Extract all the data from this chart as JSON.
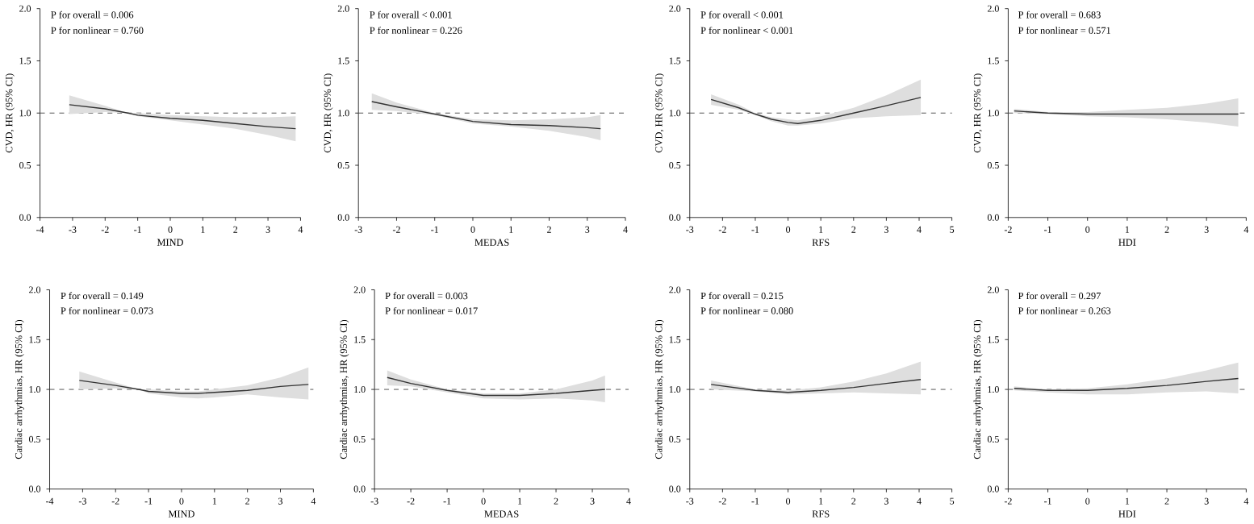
{
  "chart_data": [
    {
      "type": "line",
      "xlabel": "MIND",
      "ylabel": "CVD, HR (95% CI)",
      "annotations": [
        "P for overall = 0.006",
        "P for nonlinear = 0.760"
      ],
      "xlim": [
        -4,
        4
      ],
      "xticks": [
        -4,
        -3,
        -2,
        -1,
        0,
        1,
        2,
        3,
        4
      ],
      "ylim": [
        0,
        2
      ],
      "yticks": [
        {
          "value": 0,
          "label": "0.0"
        },
        {
          "value": 0.5,
          "label": "0.5"
        },
        {
          "value": 1,
          "label": "1.0"
        },
        {
          "value": 1.5,
          "label": "1.5"
        },
        {
          "value": 2,
          "label": "2.0"
        }
      ],
      "series": [
        {
          "color": "#333333",
          "x": [
            -3.1,
            -2,
            -1.3,
            -1,
            0,
            1,
            2,
            3,
            3.85
          ],
          "values": [
            1.08,
            1.04,
            1.0,
            0.98,
            0.95,
            0.93,
            0.9,
            0.87,
            0.85
          ],
          "lower": [
            0.99,
            1.01,
            1.0,
            0.97,
            0.93,
            0.89,
            0.85,
            0.79,
            0.73
          ],
          "upper": [
            1.17,
            1.07,
            1.0,
            1.0,
            0.98,
            0.97,
            0.96,
            0.96,
            0.97
          ]
        }
      ],
      "ref_lines": [
        {
          "axis": "y",
          "value": 1,
          "line_style": "dashed",
          "color": "#555555"
        }
      ]
    },
    {
      "type": "line",
      "xlabel": "MEDAS",
      "ylabel": "CVD, HR (95% CI)",
      "annotations": [
        "P for overall < 0.001",
        "P for nonlinear = 0.226"
      ],
      "xlim": [
        -3,
        4
      ],
      "xticks": [
        -3,
        -2,
        -1,
        0,
        1,
        2,
        3,
        4
      ],
      "ylim": [
        0,
        2
      ],
      "yticks": [
        {
          "value": 0,
          "label": "0.0"
        },
        {
          "value": 0.5,
          "label": "0.5"
        },
        {
          "value": 1,
          "label": "1.0"
        },
        {
          "value": 1.5,
          "label": "1.5"
        },
        {
          "value": 2,
          "label": "2.0"
        }
      ],
      "series": [
        {
          "color": "#333333",
          "x": [
            -2.65,
            -2,
            -1,
            0,
            1,
            2,
            3,
            3.35
          ],
          "values": [
            1.11,
            1.06,
            0.99,
            0.92,
            0.89,
            0.88,
            0.86,
            0.85
          ],
          "lower": [
            1.03,
            1.02,
            0.98,
            0.9,
            0.87,
            0.83,
            0.77,
            0.74
          ],
          "upper": [
            1.19,
            1.1,
            1.0,
            0.94,
            0.93,
            0.94,
            0.96,
            0.98
          ]
        }
      ],
      "ref_lines": [
        {
          "axis": "y",
          "value": 1,
          "line_style": "dashed",
          "color": "#555555"
        }
      ]
    },
    {
      "type": "line",
      "xlabel": "RFS",
      "ylabel": "CVD, HR (95% CI)",
      "annotations": [
        "P for overall < 0.001",
        "P for nonlinear < 0.001"
      ],
      "xlim": [
        -3,
        5
      ],
      "xticks": [
        -3,
        -2,
        -1,
        0,
        1,
        2,
        3,
        4,
        5
      ],
      "ylim": [
        0,
        2
      ],
      "yticks": [
        {
          "value": 0,
          "label": "0.0"
        },
        {
          "value": 0.5,
          "label": "0.5"
        },
        {
          "value": 1,
          "label": "1.0"
        },
        {
          "value": 1.5,
          "label": "1.5"
        },
        {
          "value": 2,
          "label": "2.0"
        }
      ],
      "series": [
        {
          "color": "#333333",
          "x": [
            -2.35,
            -1.5,
            -1,
            -0.5,
            0,
            0.3,
            1,
            2,
            3,
            4.05
          ],
          "values": [
            1.13,
            1.05,
            0.99,
            0.94,
            0.91,
            0.9,
            0.93,
            1.0,
            1.07,
            1.15
          ],
          "lower": [
            1.08,
            1.03,
            0.98,
            0.92,
            0.88,
            0.88,
            0.9,
            0.95,
            0.97,
            0.98
          ],
          "upper": [
            1.18,
            1.08,
            1.0,
            0.96,
            0.94,
            0.93,
            0.97,
            1.05,
            1.17,
            1.32
          ]
        }
      ],
      "ref_lines": [
        {
          "axis": "y",
          "value": 1,
          "line_style": "dashed",
          "color": "#555555"
        }
      ]
    },
    {
      "type": "line",
      "xlabel": "HDI",
      "ylabel": "CVD, HR (95% CI)",
      "annotations": [
        "P for overall = 0.683",
        "P for nonlinear = 0.571"
      ],
      "xlim": [
        -2,
        4
      ],
      "xticks": [
        -2,
        -1,
        0,
        1,
        2,
        3,
        4
      ],
      "ylim": [
        0,
        2
      ],
      "yticks": [
        {
          "value": 0,
          "label": "0.0"
        },
        {
          "value": 0.5,
          "label": "0.5"
        },
        {
          "value": 1,
          "label": "1.0"
        },
        {
          "value": 1.5,
          "label": "1.5"
        },
        {
          "value": 2,
          "label": "2.0"
        }
      ],
      "series": [
        {
          "color": "#333333",
          "x": [
            -1.85,
            -1,
            0,
            1,
            2,
            3,
            3.8
          ],
          "values": [
            1.02,
            1.0,
            0.99,
            0.99,
            0.99,
            0.99,
            0.99
          ],
          "lower": [
            1.0,
            0.99,
            0.97,
            0.96,
            0.94,
            0.91,
            0.87
          ],
          "upper": [
            1.04,
            1.01,
            1.01,
            1.03,
            1.05,
            1.09,
            1.14
          ]
        }
      ],
      "ref_lines": [
        {
          "axis": "y",
          "value": 1,
          "line_style": "dashed",
          "color": "#555555"
        }
      ]
    },
    {
      "type": "line",
      "xlabel": "MIND",
      "ylabel": "Cardiac arrhythmias, HR (95% CI)",
      "annotations": [
        "P for overall = 0.149",
        "P for nonlinear = 0.073"
      ],
      "xlim": [
        -4,
        4
      ],
      "xticks": [
        -4,
        -3,
        -2,
        -1,
        0,
        1,
        2,
        3,
        4
      ],
      "ylim": [
        0,
        2
      ],
      "yticks": [
        {
          "value": 0,
          "label": "0.0"
        },
        {
          "value": 0.5,
          "label": "0.5"
        },
        {
          "value": 1,
          "label": "1.0"
        },
        {
          "value": 1.5,
          "label": "1.5"
        },
        {
          "value": 2,
          "label": "2.0"
        }
      ],
      "series": [
        {
          "color": "#333333",
          "x": [
            -3.1,
            -2,
            -1.3,
            -1,
            0,
            0.5,
            1,
            2,
            3,
            3.85
          ],
          "values": [
            1.09,
            1.04,
            1.0,
            0.98,
            0.96,
            0.96,
            0.97,
            0.99,
            1.03,
            1.05
          ],
          "lower": [
            1.0,
            1.01,
            1.0,
            0.96,
            0.92,
            0.91,
            0.92,
            0.95,
            0.92,
            0.9
          ],
          "upper": [
            1.18,
            1.07,
            1.0,
            1.0,
            0.98,
            0.98,
            1.0,
            1.04,
            1.12,
            1.22
          ]
        }
      ],
      "ref_lines": [
        {
          "axis": "y",
          "value": 1,
          "line_style": "dashed",
          "color": "#555555"
        }
      ]
    },
    {
      "type": "line",
      "xlabel": "MEDAS",
      "ylabel": "Cardiac arrhythmias, HR (95% CI)",
      "annotations": [
        "P for overall = 0.003",
        "P for nonlinear = 0.017"
      ],
      "xlim": [
        -3,
        4
      ],
      "xticks": [
        -3,
        -2,
        -1,
        0,
        1,
        2,
        3,
        4
      ],
      "ylim": [
        0,
        2
      ],
      "yticks": [
        {
          "value": 0,
          "label": "0.0"
        },
        {
          "value": 0.5,
          "label": "0.5"
        },
        {
          "value": 1,
          "label": "1.0"
        },
        {
          "value": 1.5,
          "label": "1.5"
        },
        {
          "value": 2,
          "label": "2.0"
        }
      ],
      "series": [
        {
          "color": "#333333",
          "x": [
            -2.65,
            -2,
            -1,
            0,
            1,
            2,
            3,
            3.35
          ],
          "values": [
            1.12,
            1.06,
            0.99,
            0.94,
            0.94,
            0.96,
            0.99,
            1.0
          ],
          "lower": [
            1.04,
            1.03,
            0.97,
            0.91,
            0.9,
            0.91,
            0.89,
            0.87
          ],
          "upper": [
            1.19,
            1.1,
            1.0,
            0.96,
            0.96,
            1.0,
            1.09,
            1.14
          ]
        }
      ],
      "ref_lines": [
        {
          "axis": "y",
          "value": 1,
          "line_style": "dashed",
          "color": "#555555"
        }
      ]
    },
    {
      "type": "line",
      "xlabel": "RFS",
      "ylabel": "Cardiac arrhythmias, HR (95% CI)",
      "annotations": [
        "P for overall = 0.215",
        "P for nonlinear = 0.080"
      ],
      "xlim": [
        -3,
        5
      ],
      "xticks": [
        -3,
        -2,
        -1,
        0,
        1,
        2,
        3,
        4,
        5
      ],
      "ylim": [
        0,
        2
      ],
      "yticks": [
        {
          "value": 0,
          "label": "0.0"
        },
        {
          "value": 0.5,
          "label": "0.5"
        },
        {
          "value": 1,
          "label": "1.0"
        },
        {
          "value": 1.5,
          "label": "1.5"
        },
        {
          "value": 2,
          "label": "2.0"
        }
      ],
      "series": [
        {
          "color": "#333333",
          "x": [
            -2.35,
            -1,
            0,
            1,
            2,
            3,
            4.05
          ],
          "values": [
            1.05,
            0.99,
            0.97,
            0.99,
            1.02,
            1.06,
            1.1
          ],
          "lower": [
            1.0,
            0.98,
            0.95,
            0.96,
            0.97,
            0.96,
            0.95
          ],
          "upper": [
            1.09,
            1.0,
            0.99,
            1.02,
            1.08,
            1.16,
            1.28
          ]
        }
      ],
      "ref_lines": [
        {
          "axis": "y",
          "value": 1,
          "line_style": "dashed",
          "color": "#555555"
        }
      ]
    },
    {
      "type": "line",
      "xlabel": "HDI",
      "ylabel": "Cardiac arrhythmias, HR (95% CI)",
      "annotations": [
        "P for overall = 0.297",
        "P for nonlinear = 0.263"
      ],
      "xlim": [
        -2,
        4
      ],
      "xticks": [
        -2,
        -1,
        0,
        1,
        2,
        3,
        4
      ],
      "ylim": [
        0,
        2
      ],
      "yticks": [
        {
          "value": 0,
          "label": "0.0"
        },
        {
          "value": 0.5,
          "label": "0.5"
        },
        {
          "value": 1,
          "label": "1.0"
        },
        {
          "value": 1.5,
          "label": "1.5"
        },
        {
          "value": 2,
          "label": "2.0"
        }
      ],
      "series": [
        {
          "color": "#333333",
          "x": [
            -1.85,
            -1,
            0,
            1,
            2,
            3,
            3.8
          ],
          "values": [
            1.01,
            0.99,
            0.99,
            1.01,
            1.04,
            1.08,
            1.11
          ],
          "lower": [
            0.99,
            0.97,
            0.95,
            0.95,
            0.97,
            0.98,
            0.96
          ],
          "upper": [
            1.03,
            1.0,
            1.01,
            1.05,
            1.11,
            1.19,
            1.27
          ]
        }
      ],
      "ref_lines": [
        {
          "axis": "y",
          "value": 1,
          "line_style": "dashed",
          "color": "#555555"
        }
      ]
    }
  ]
}
